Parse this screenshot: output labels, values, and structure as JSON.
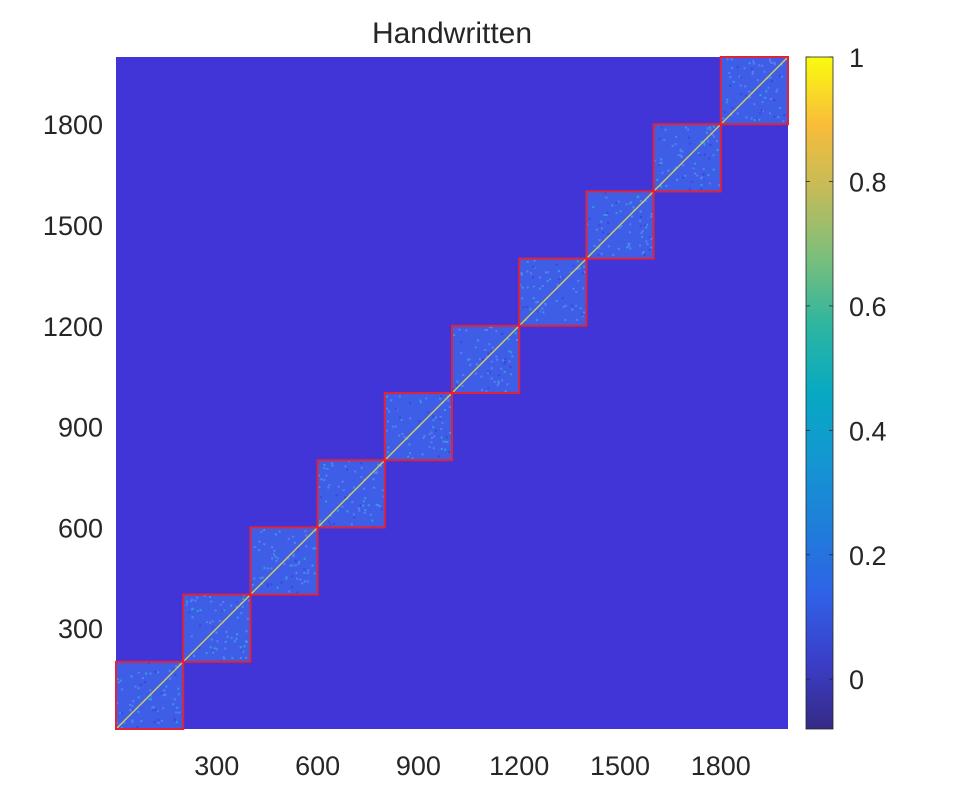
{
  "chart_data": {
    "type": "heatmap",
    "title": "Handwritten",
    "xlabel": "",
    "ylabel": "",
    "n": 2000,
    "xlim": [
      0,
      2000
    ],
    "ylim": [
      0,
      2000
    ],
    "xticks": [
      300,
      600,
      900,
      1200,
      1500,
      1800
    ],
    "xtick_labels": [
      "300",
      "600",
      "900",
      "1200",
      "1500",
      "1800"
    ],
    "yticks": [
      300,
      600,
      900,
      1200,
      1500,
      1800
    ],
    "ytick_labels": [
      "300",
      "600",
      "900",
      "1200",
      "1500",
      "1800"
    ],
    "background_value": 0,
    "block_size": 200,
    "blocks": [
      {
        "start": 0,
        "end": 200
      },
      {
        "start": 200,
        "end": 400
      },
      {
        "start": 400,
        "end": 600
      },
      {
        "start": 600,
        "end": 800
      },
      {
        "start": 800,
        "end": 1000
      },
      {
        "start": 1000,
        "end": 1200
      },
      {
        "start": 1200,
        "end": 1400
      },
      {
        "start": 1400,
        "end": 1600
      },
      {
        "start": 1600,
        "end": 1800
      },
      {
        "start": 1800,
        "end": 2000
      }
    ],
    "block_interior_value": 0.12,
    "diagonal_value": 1,
    "grid": false,
    "colorbar": {
      "range": [
        -0.08,
        1
      ],
      "ticks": [
        0,
        0.2,
        0.4,
        0.6,
        0.8,
        1
      ],
      "tick_labels": [
        "0",
        "0.2",
        "0.4",
        "0.6",
        "0.8",
        "1"
      ],
      "colormap": "parula"
    },
    "colors": {
      "background": "#4235d8",
      "block_fill": "#3f5ee8",
      "block_border": "#e0233a",
      "diagonal": "#e8e04a"
    }
  }
}
